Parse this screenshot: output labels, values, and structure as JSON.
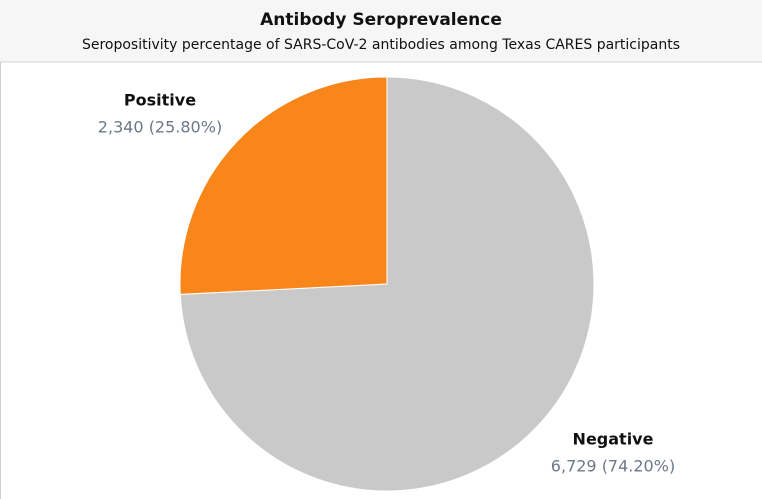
{
  "chart_data": {
    "type": "pie",
    "title": "Antibody Seroprevalence",
    "subtitle": "Seropositivity percentage of SARS-CoV-2 antibodies among Texas CARES participants",
    "categories": [
      "Positive",
      "Negative"
    ],
    "values": [
      2340,
      6729
    ],
    "value_labels": [
      "2,340 (25.80%)",
      "6,729 (74.20%)"
    ],
    "colors": [
      "#f8861a",
      "#c8c9c8"
    ]
  }
}
